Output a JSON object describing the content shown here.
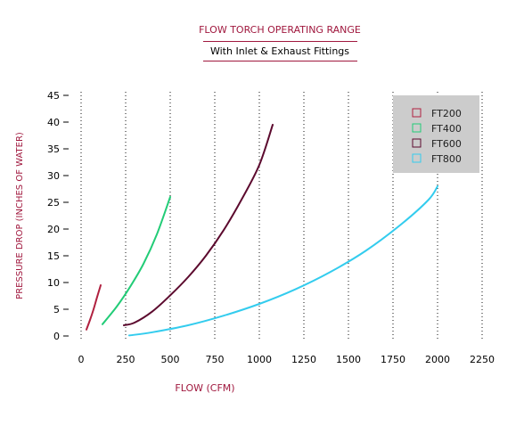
{
  "chart_data": {
    "type": "line",
    "title": "FLOW TORCH OPERATING RANGE",
    "subtitle": "With Inlet & Exhaust Fittings",
    "xlabel": "FLOW (CFM)",
    "ylabel": "PRESSURE DROP (INCHES OF WATER)",
    "xlim": [
      0,
      2250
    ],
    "ylim": [
      0,
      45
    ],
    "xticks": [
      "0",
      "250",
      "500",
      "750",
      "1000",
      "1250",
      "1500",
      "1750",
      "2000",
      "2250"
    ],
    "yticks": [
      "0",
      "5",
      "10",
      "15",
      "20",
      "25",
      "30",
      "35",
      "40",
      "45"
    ],
    "grid": "vertical dotted lines",
    "legend_position": "top-right",
    "series": [
      {
        "name": "FT200",
        "color": "#b0203f",
        "x": [
          30,
          50,
          70,
          90,
          110
        ],
        "y": [
          1.2,
          3.0,
          5.0,
          7.3,
          9.5
        ]
      },
      {
        "name": "FT400",
        "color": "#22cc77",
        "x": [
          120,
          200,
          275,
          350,
          425,
          500
        ],
        "y": [
          2.2,
          5.5,
          9.2,
          13.5,
          19.0,
          26.0
        ]
      },
      {
        "name": "FT600",
        "color": "#5c0a2e",
        "x": [
          240,
          300,
          400,
          500,
          600,
          700,
          800,
          900,
          1000,
          1075
        ],
        "y": [
          2.0,
          2.5,
          4.6,
          7.6,
          11.0,
          15.0,
          19.8,
          25.5,
          32.0,
          39.5
        ]
      },
      {
        "name": "FT800",
        "color": "#33ccee",
        "x": [
          270,
          400,
          600,
          800,
          1000,
          1200,
          1400,
          1600,
          1800,
          1950,
          2000
        ],
        "y": [
          0.1,
          0.7,
          2.0,
          3.8,
          6.0,
          8.7,
          12.0,
          16.0,
          21.0,
          25.5,
          28.0
        ]
      }
    ]
  }
}
